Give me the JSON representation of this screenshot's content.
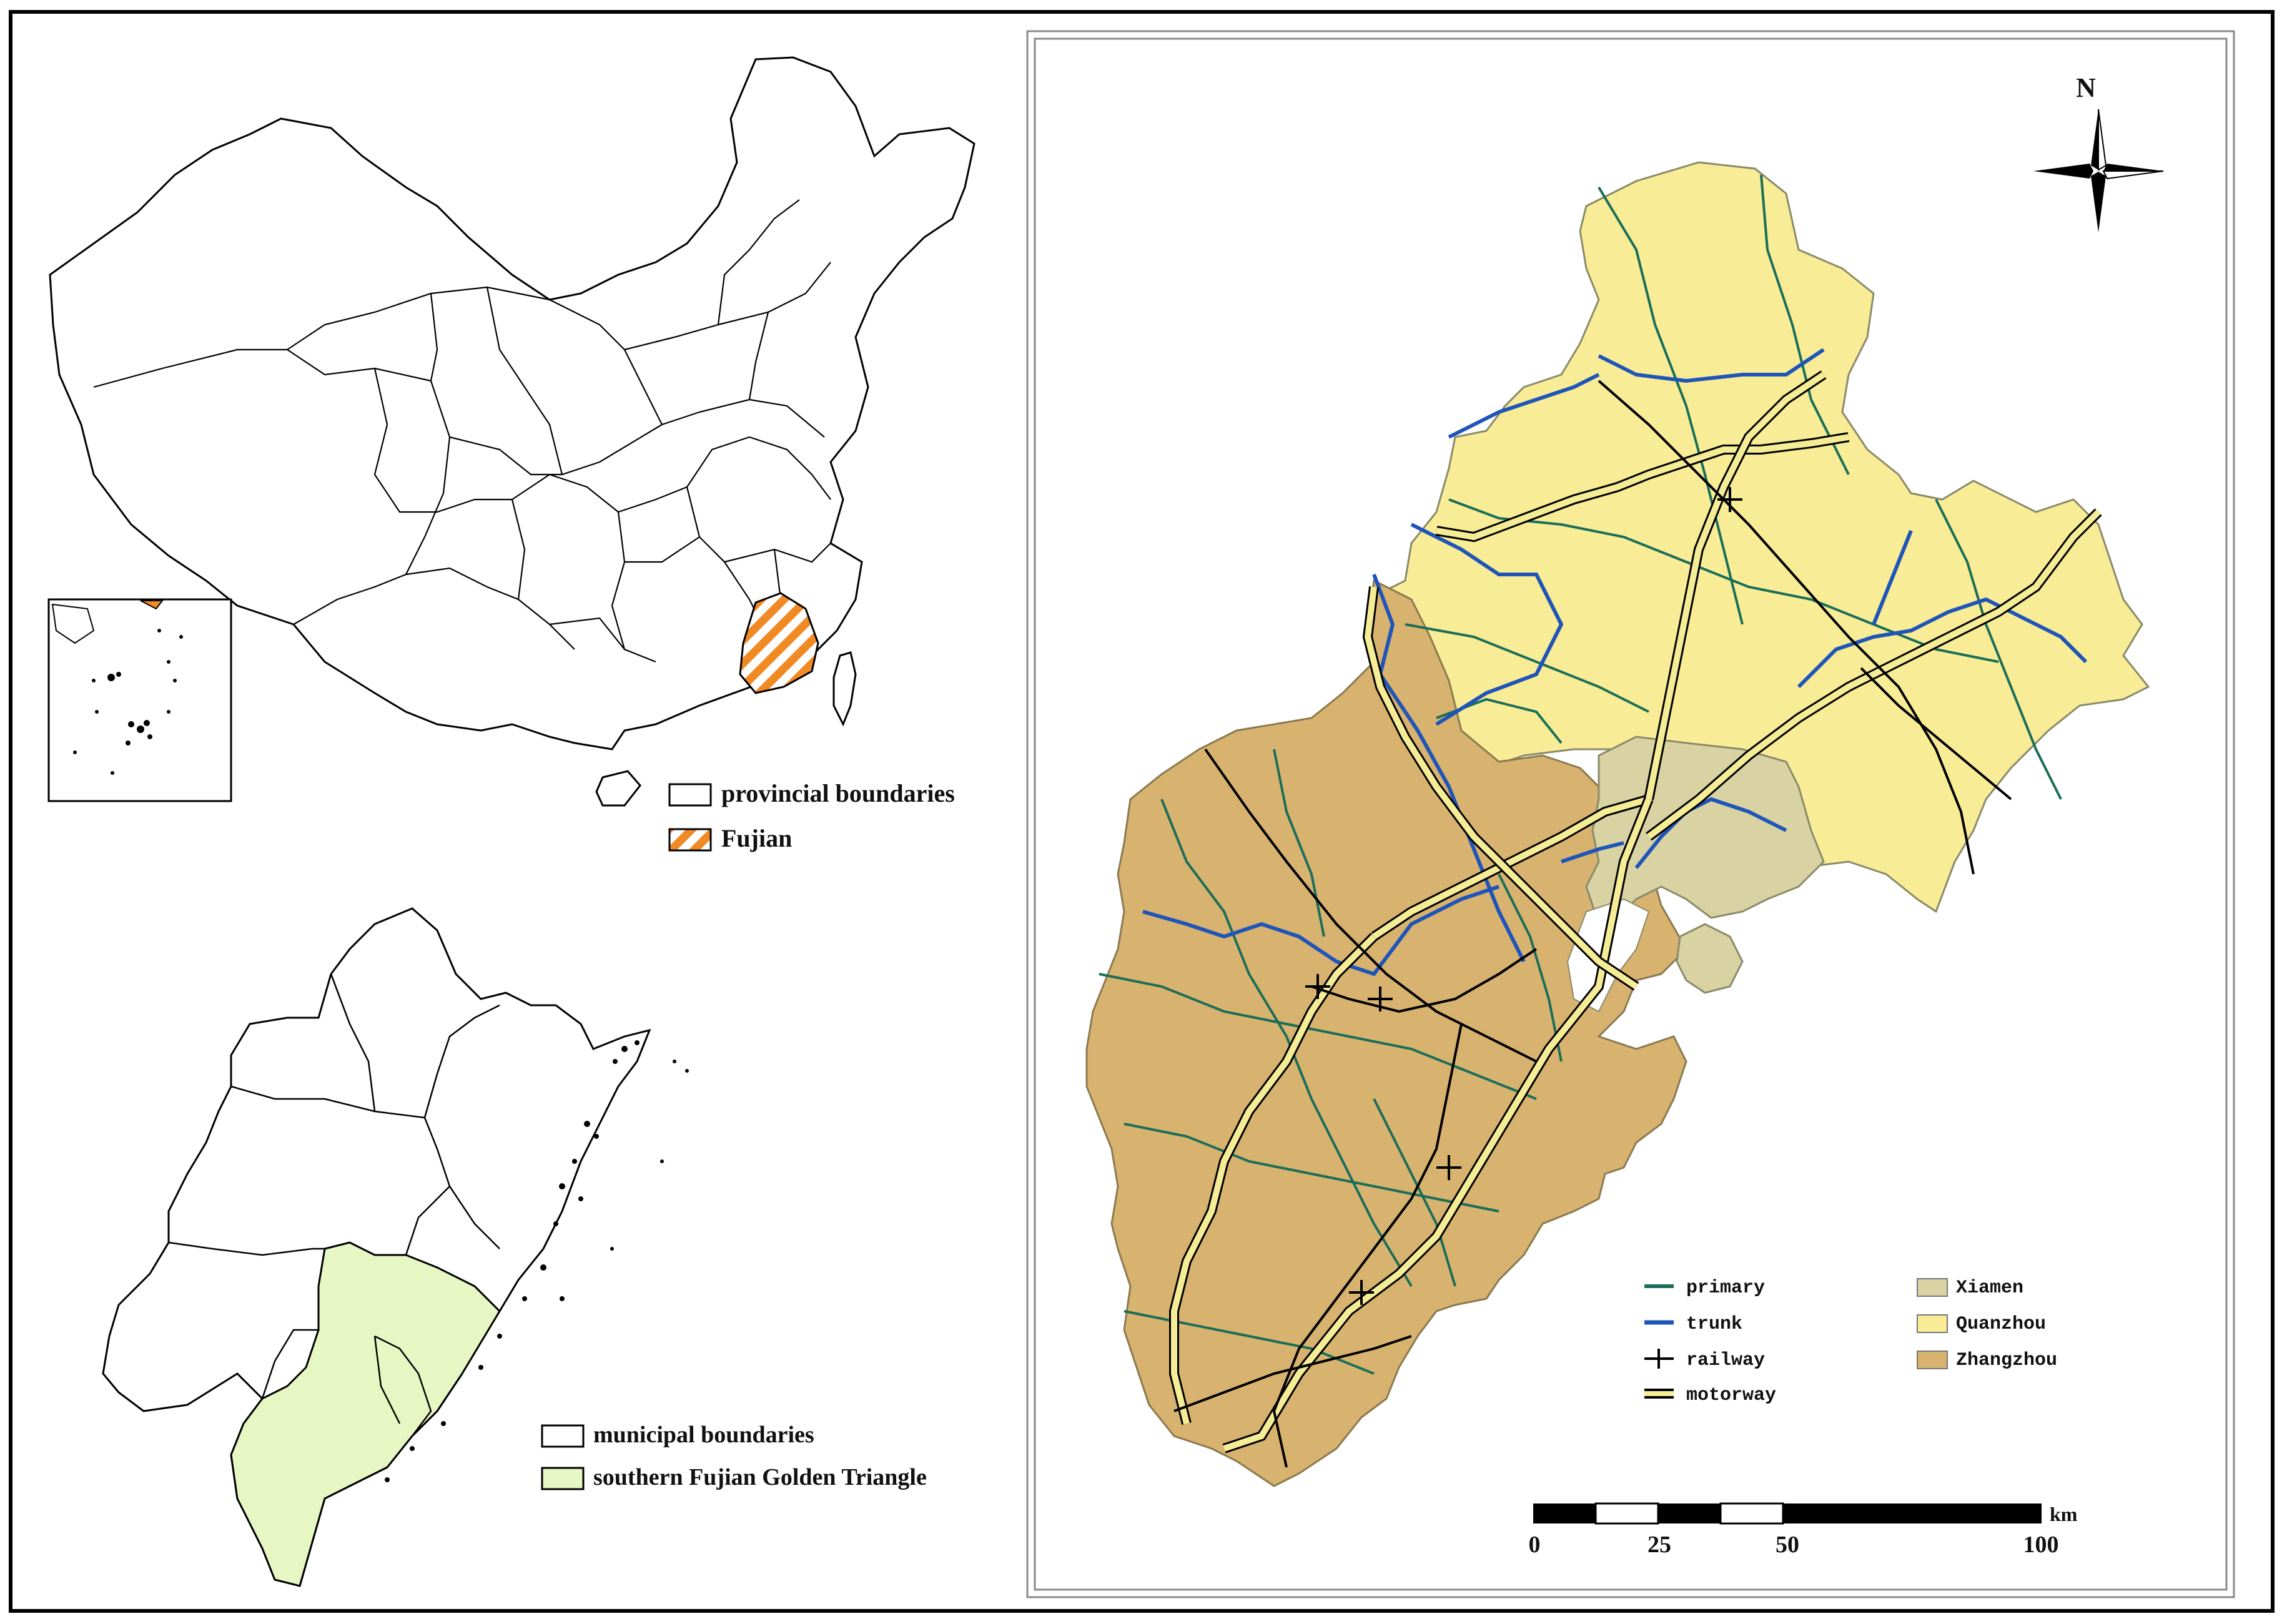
{
  "china_map": {
    "legend": [
      {
        "label": "provincial boundaries",
        "swatch": "#ffffff"
      },
      {
        "label": "Fujian",
        "swatch": "#f08a24",
        "pattern": "hatched"
      }
    ]
  },
  "fujian_map": {
    "legend": [
      {
        "label": "municipal boundaries",
        "swatch": "#ffffff"
      },
      {
        "label": "southern Fujian Golden Triangle",
        "swatch": "#e6f7c4"
      }
    ]
  },
  "region_map": {
    "north_arrow": "N",
    "legend_lines": [
      {
        "label": "primary",
        "color": "#1a6e58"
      },
      {
        "label": "trunk",
        "color": "#1f55b8"
      },
      {
        "label": "railway",
        "color": "#000000"
      },
      {
        "label": "motorway",
        "color": "#f5ec96"
      }
    ],
    "legend_areas": [
      {
        "label": "Xiamen",
        "color": "#d9d3a4"
      },
      {
        "label": "Quanzhou",
        "color": "#f8ec96"
      },
      {
        "label": "Zhangzhou",
        "color": "#d8b26f"
      }
    ],
    "scale_bar": {
      "ticks": [
        "0",
        "25",
        "50",
        "100"
      ],
      "unit": "km"
    }
  }
}
